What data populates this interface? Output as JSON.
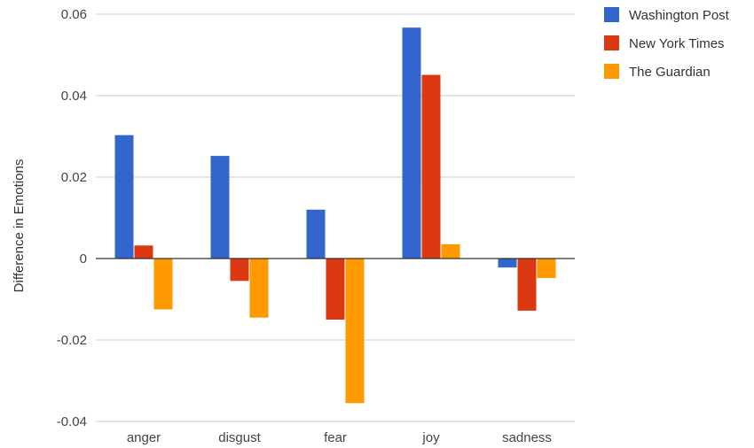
{
  "chart_data": {
    "type": "bar",
    "title": "",
    "xlabel": "",
    "ylabel": "Difference in Emotions",
    "ylim": [
      -0.04,
      0.06
    ],
    "yticks": [
      0.06,
      0.04,
      0.02,
      0,
      -0.02,
      -0.04
    ],
    "ytick_labels": [
      "0.06",
      "0.04",
      "0.02",
      "0",
      "-0.02",
      "-0.04"
    ],
    "grid": true,
    "legend_position": "top-right",
    "categories": [
      "anger",
      "disgust",
      "fear",
      "joy",
      "sadness"
    ],
    "series": [
      {
        "name": "Washington Post",
        "color": "#3366cc",
        "values": [
          0.0303,
          0.0252,
          0.012,
          0.0567,
          -0.0022
        ]
      },
      {
        "name": "New York Times",
        "color": "#dc3912",
        "values": [
          0.0032,
          -0.0055,
          -0.015,
          0.0451,
          -0.0128
        ]
      },
      {
        "name": "The Guardian",
        "color": "#ff9900",
        "values": [
          -0.0125,
          -0.0145,
          -0.0355,
          0.0035,
          -0.0048
        ]
      }
    ]
  }
}
